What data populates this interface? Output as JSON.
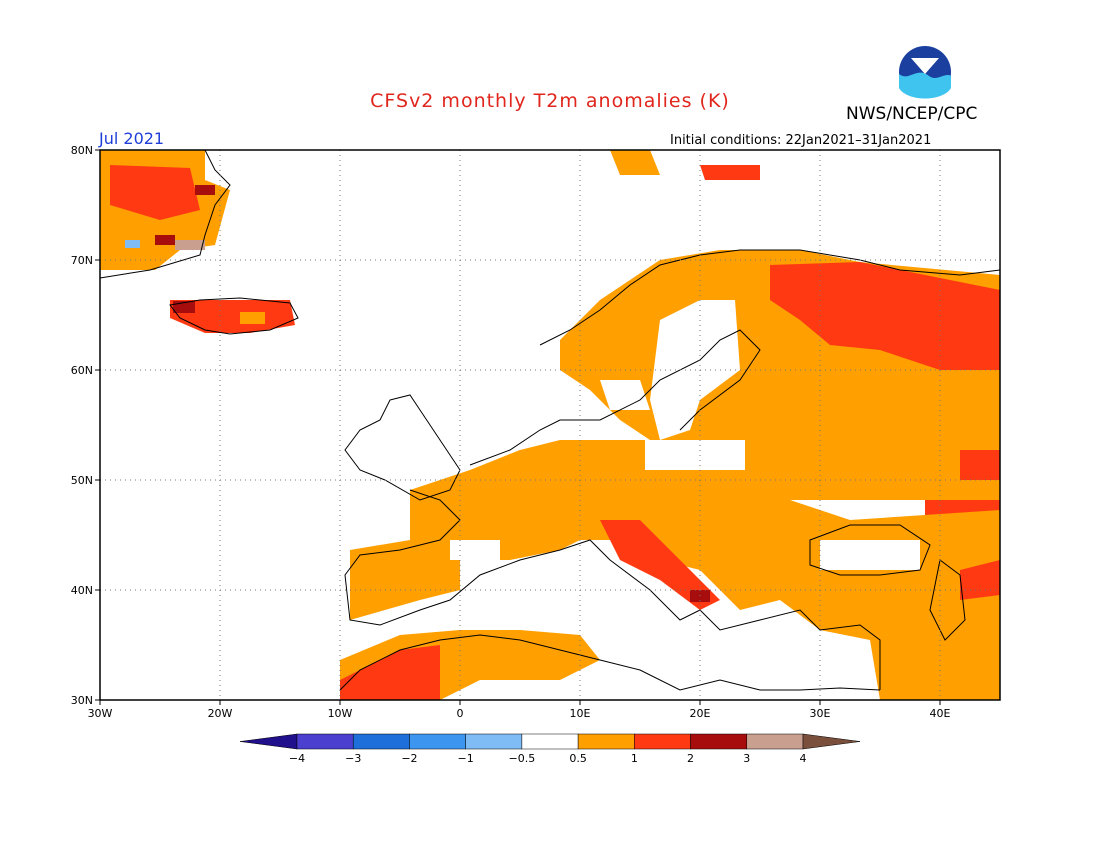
{
  "title": "CFSv2 monthly T2m anomalies (K)",
  "agency": "NWS/NCEP/CPC",
  "logo_text": "NOAA",
  "month_label": "Jul 2021",
  "initial_conditions_label": "Initial conditions:",
  "initial_conditions_range": "22Jan2021–31Jan2021",
  "colors": {
    "title": "#e0261d",
    "month_label": "#1f3fd6",
    "noaa_blue": "#1a3f9e",
    "noaa_cyan": "#3fc4ef"
  },
  "map": {
    "lat_ticks": [
      "80N",
      "70N",
      "60N",
      "50N",
      "40N",
      "30N"
    ],
    "lon_ticks": [
      "30W",
      "20W",
      "10W",
      "0",
      "10E",
      "20E",
      "30E",
      "40E"
    ],
    "lat_range": [
      30,
      80
    ],
    "lon_range": [
      -30,
      45
    ],
    "grid": "dotted"
  },
  "colorbar": {
    "tick_labels": [
      "−4",
      "−3",
      "−2",
      "−1",
      "−0.5",
      "0.5",
      "1",
      "2",
      "3",
      "4"
    ],
    "colors": [
      "#20108c",
      "#4a3fcf",
      "#1e6fd9",
      "#3c96ef",
      "#7fbcf5",
      "#ffffff",
      "#ff9f00",
      "#ff3a12",
      "#a80d0d",
      "#c9a08f",
      "#7a4f3c"
    ]
  }
}
